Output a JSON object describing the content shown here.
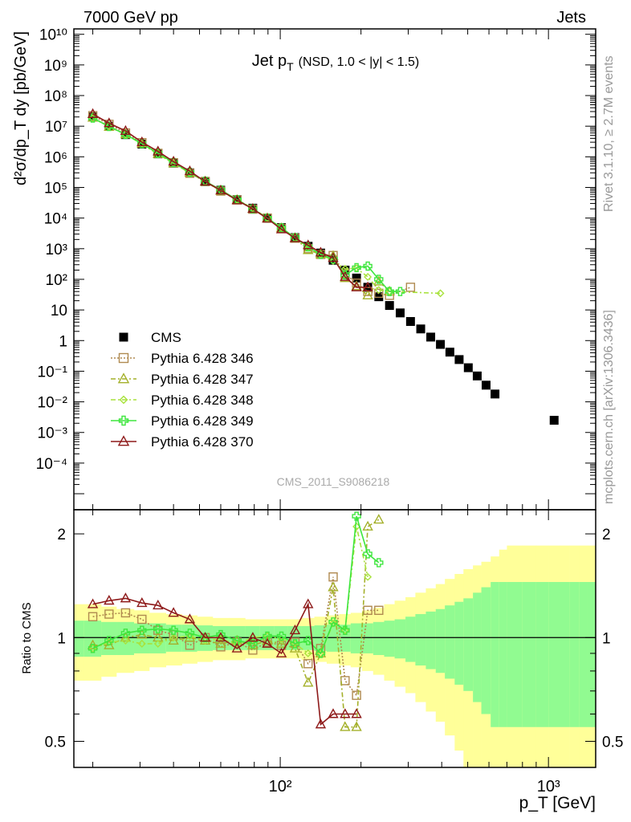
{
  "header": {
    "left": "7000 GeV pp",
    "right": "Jets",
    "side_top": "Rivet 3.1.10, ≥ 2.7M events",
    "side_bottom": "mcplots.cern.ch [arXiv:1306.3436]"
  },
  "colors": {
    "CMS": "#000000",
    "346": "#b08a50",
    "347": "#a4b02a",
    "348": "#a8e23c",
    "349": "#3ee63e",
    "370": "#8e1a1a",
    "band_outer": "#ffff99",
    "band_inner": "#91fb91"
  },
  "chart_data": [
    {
      "type": "scatter",
      "panel": "main",
      "title_main": "Jet p",
      "title_sub": "T",
      "title_extra": "(NSD, 1.0 < |y| < 1.5)",
      "ylabel": "d²σ/dp_T dy [pb/GeV]",
      "watermark": "CMS_2011_S9086218",
      "xscale": "log",
      "yscale": "log",
      "xlim": [
        17,
        1500
      ],
      "ylim": [
        3e-06,
        15000000000
      ],
      "legend_position": "bottom-left",
      "x_tick_labels": [
        "10²",
        "10³"
      ],
      "y_tick_labels": [
        "10⁻⁴",
        "10⁻³",
        "10⁻²",
        "10⁻¹",
        "1",
        "10",
        "10²",
        "10³",
        "10⁴",
        "10⁵",
        "10⁶",
        "10⁷",
        "10⁸",
        "10⁹",
        "10¹⁰"
      ],
      "series": [
        {
          "name": "CMS",
          "key": "CMS",
          "x": [
            20,
            23,
            26.5,
            30.5,
            35,
            40,
            46,
            52.5,
            60,
            69,
            79,
            89.5,
            101,
            113.5,
            127,
            141.5,
            157.5,
            174.5,
            192.5,
            212,
            233,
            255.5,
            280,
            306,
            334,
            364,
            395.5,
            429,
            464.5,
            502.5,
            542.5,
            585.5,
            632,
            1050
          ],
          "y": [
            20000000,
            10000000,
            5300000,
            2600000,
            1250000,
            620000,
            300000,
            155000,
            81000,
            40000,
            21000,
            10000,
            4900,
            2300,
            1200,
            720,
            420,
            200,
            110,
            55,
            27,
            14,
            8,
            4.2,
            2.4,
            1.3,
            0.75,
            0.42,
            0.24,
            0.13,
            0.07,
            0.035,
            0.018,
            0.0025
          ]
        },
        {
          "name": "Pythia 6.428 346",
          "key": "346",
          "x": [
            20,
            23,
            26.5,
            30.5,
            35,
            40,
            46,
            52.5,
            60,
            69,
            79,
            89.5,
            101,
            113.5,
            127,
            141.5,
            157.5,
            174.5,
            192.5,
            212,
            233,
            255.5,
            306
          ],
          "y": [
            22000000,
            11500000,
            6000000,
            2900000,
            1300000,
            640000,
            290000,
            157000,
            76000,
            39000,
            19500,
            10000,
            4600,
            2200,
            1000,
            650,
            600,
            150,
            75,
            40,
            35,
            30,
            55
          ]
        },
        {
          "name": "Pythia 6.428 347",
          "key": "347",
          "x": [
            20,
            23,
            26.5,
            30.5,
            35,
            40,
            46,
            52.5,
            60,
            69,
            79,
            89.5,
            101,
            113.5,
            127,
            141.5,
            157.5,
            174.5,
            192.5,
            212,
            233,
            255.5
          ],
          "y": [
            19000000,
            9500000,
            5400000,
            2700000,
            1250000,
            610000,
            305000,
            155000,
            78000,
            39000,
            20000,
            10000,
            4700,
            2200,
            900,
            660,
            580,
            110,
            60,
            30,
            85,
            40
          ]
        },
        {
          "name": "Pythia 6.428 348",
          "key": "348",
          "x": [
            20,
            23,
            26.5,
            30.5,
            35,
            40,
            46,
            52.5,
            60,
            69,
            79,
            89.5,
            101,
            113.5,
            127,
            141.5,
            157.5,
            174.5,
            192.5,
            212,
            233,
            255.5,
            395.5
          ],
          "y": [
            18000000,
            9800000,
            5400000,
            2600000,
            1200000,
            620000,
            300000,
            152000,
            80000,
            40000,
            21000,
            10000,
            4900,
            2200,
            1100,
            650,
            400,
            220,
            230,
            120,
            45,
            40,
            35
          ]
        },
        {
          "name": "Pythia 6.428 349",
          "key": "349",
          "x": [
            20,
            23,
            26.5,
            30.5,
            35,
            40,
            46,
            52.5,
            60,
            69,
            79,
            89.5,
            101,
            113.5,
            127,
            141.5,
            157.5,
            174.5,
            192.5,
            212,
            233,
            255.5,
            280
          ],
          "y": [
            18500000,
            9800000,
            5400000,
            2700000,
            1300000,
            650000,
            310000,
            160000,
            83000,
            40000,
            20000,
            10000,
            4800,
            2300,
            1150,
            650,
            460,
            140,
            240,
            270,
            100,
            40,
            40
          ]
        },
        {
          "name": "Pythia 6.428 370",
          "key": "370",
          "x": [
            20,
            23,
            26.5,
            30.5,
            35,
            40,
            46,
            52.5,
            60,
            69,
            79,
            89.5,
            101,
            113.5,
            127,
            141.5,
            157.5,
            174.5,
            192.5,
            212
          ],
          "y": [
            25000000,
            12500000,
            7000000,
            3000000,
            1500000,
            700000,
            340000,
            155000,
            80000,
            38000,
            20000,
            9600,
            4300,
            2200,
            1300,
            750,
            500,
            120,
            55,
            55
          ]
        }
      ]
    },
    {
      "type": "scatter",
      "panel": "ratio",
      "ylabel": "Ratio to CMS",
      "xlabel": "p_T [GeV]",
      "xscale": "log",
      "yscale": "log",
      "xlim": [
        17,
        1500
      ],
      "ylim": [
        0.42,
        2.35
      ],
      "y_tick_labels": [
        "0.5",
        "1",
        "2"
      ],
      "reference_line": 1,
      "band_edges": [
        17,
        18.5,
        21.5,
        24.5,
        28.5,
        32.5,
        37.5,
        43,
        49,
        56,
        64.5,
        74,
        84,
        95,
        107,
        120,
        134,
        149,
        166,
        183,
        202,
        222,
        244,
        267,
        293,
        319,
        349,
        380,
        411,
        447,
        482,
        523,
        562,
        609,
        655,
        700,
        800,
        900,
        1000,
        1100,
        1200,
        1300,
        1400,
        1500
      ],
      "band_inner_err": [
        0.12,
        0.12,
        0.11,
        0.11,
        0.1,
        0.1,
        0.09,
        0.09,
        0.085,
        0.08,
        0.08,
        0.08,
        0.08,
        0.08,
        0.08,
        0.08,
        0.085,
        0.09,
        0.09,
        0.1,
        0.1,
        0.11,
        0.12,
        0.13,
        0.15,
        0.17,
        0.19,
        0.21,
        0.24,
        0.27,
        0.3,
        0.35,
        0.4,
        0.45,
        0.45,
        0.45,
        0.45,
        0.45,
        0.45,
        0.45,
        0.45,
        0.45,
        0.45
      ],
      "band_outer_err": [
        0.25,
        0.25,
        0.23,
        0.21,
        0.2,
        0.18,
        0.17,
        0.16,
        0.15,
        0.14,
        0.14,
        0.13,
        0.13,
        0.13,
        0.13,
        0.14,
        0.15,
        0.16,
        0.17,
        0.18,
        0.2,
        0.22,
        0.25,
        0.28,
        0.31,
        0.35,
        0.39,
        0.43,
        0.48,
        0.53,
        0.58,
        0.62,
        0.66,
        0.72,
        0.8,
        0.85,
        0.85,
        0.85,
        0.85,
        0.85,
        0.85,
        0.85,
        0.85
      ],
      "series": [
        {
          "name": "Pythia 6.428 346",
          "key": "346",
          "x": [
            20,
            23,
            26.5,
            30.5,
            35,
            40,
            46,
            52.5,
            60,
            69,
            79,
            89.5,
            101,
            113.5,
            127,
            141.5,
            157.5,
            174.5,
            192.5,
            212,
            233
          ],
          "y": [
            1.15,
            1.17,
            1.18,
            1.13,
            1.05,
            1.02,
            0.95,
            1.0,
            0.94,
            0.97,
            0.92,
            0.97,
            0.95,
            0.97,
            0.84,
            0.93,
            1.5,
            0.75,
            0.68,
            1.2,
            1.2
          ]
        },
        {
          "name": "Pythia 6.428 347",
          "key": "347",
          "x": [
            20,
            23,
            26.5,
            30.5,
            35,
            40,
            46,
            52.5,
            60,
            69,
            79,
            89.5,
            101,
            113.5,
            127,
            141.5,
            157.5,
            174.5,
            192.5,
            212,
            233
          ],
          "y": [
            0.95,
            0.95,
            1.0,
            1.02,
            1.0,
            0.98,
            1.0,
            0.98,
            0.96,
            0.98,
            0.95,
            0.98,
            0.96,
            0.93,
            0.74,
            0.9,
            1.4,
            0.55,
            0.55,
            2.1,
            2.2
          ]
        },
        {
          "name": "Pythia 6.428 348",
          "key": "348",
          "x": [
            20,
            23,
            26.5,
            30.5,
            35,
            40,
            46,
            52.5,
            60,
            69,
            79,
            89.5,
            101,
            113.5,
            127,
            141.5,
            157.5,
            174.5,
            192.5,
            212
          ],
          "y": [
            0.93,
            0.97,
            0.98,
            0.96,
            0.96,
            1.0,
            1.01,
            0.98,
            0.99,
            0.96,
            1.0,
            1.01,
            0.99,
            0.96,
            0.9,
            0.9,
            1.1,
            1.05,
            2.1,
            1.5
          ]
        },
        {
          "name": "Pythia 6.428 349",
          "key": "349",
          "x": [
            20,
            23,
            26.5,
            30.5,
            35,
            40,
            46,
            52.5,
            60,
            69,
            79,
            89.5,
            101,
            113.5,
            127,
            141.5,
            157.5,
            174.5,
            192.5,
            212,
            233
          ],
          "y": [
            0.93,
            0.98,
            1.03,
            1.05,
            1.06,
            1.05,
            1.03,
            1.0,
            1.02,
            0.98,
            0.96,
            1.01,
            1.01,
            0.96,
            0.98,
            0.9,
            1.11,
            1.05,
            2.25,
            1.75,
            1.65
          ]
        },
        {
          "name": "Pythia 6.428 370",
          "key": "370",
          "x": [
            20,
            23,
            26.5,
            30.5,
            35,
            40,
            46,
            52.5,
            60,
            69,
            79,
            89.5,
            101,
            113.5,
            127,
            141.5,
            157.5,
            174.5,
            192.5
          ],
          "y": [
            1.25,
            1.28,
            1.3,
            1.26,
            1.24,
            1.18,
            1.13,
            1.0,
            1.0,
            0.93,
            1.0,
            0.96,
            0.9,
            1.05,
            1.25,
            0.56,
            0.6,
            0.6,
            0.6
          ]
        }
      ]
    }
  ]
}
